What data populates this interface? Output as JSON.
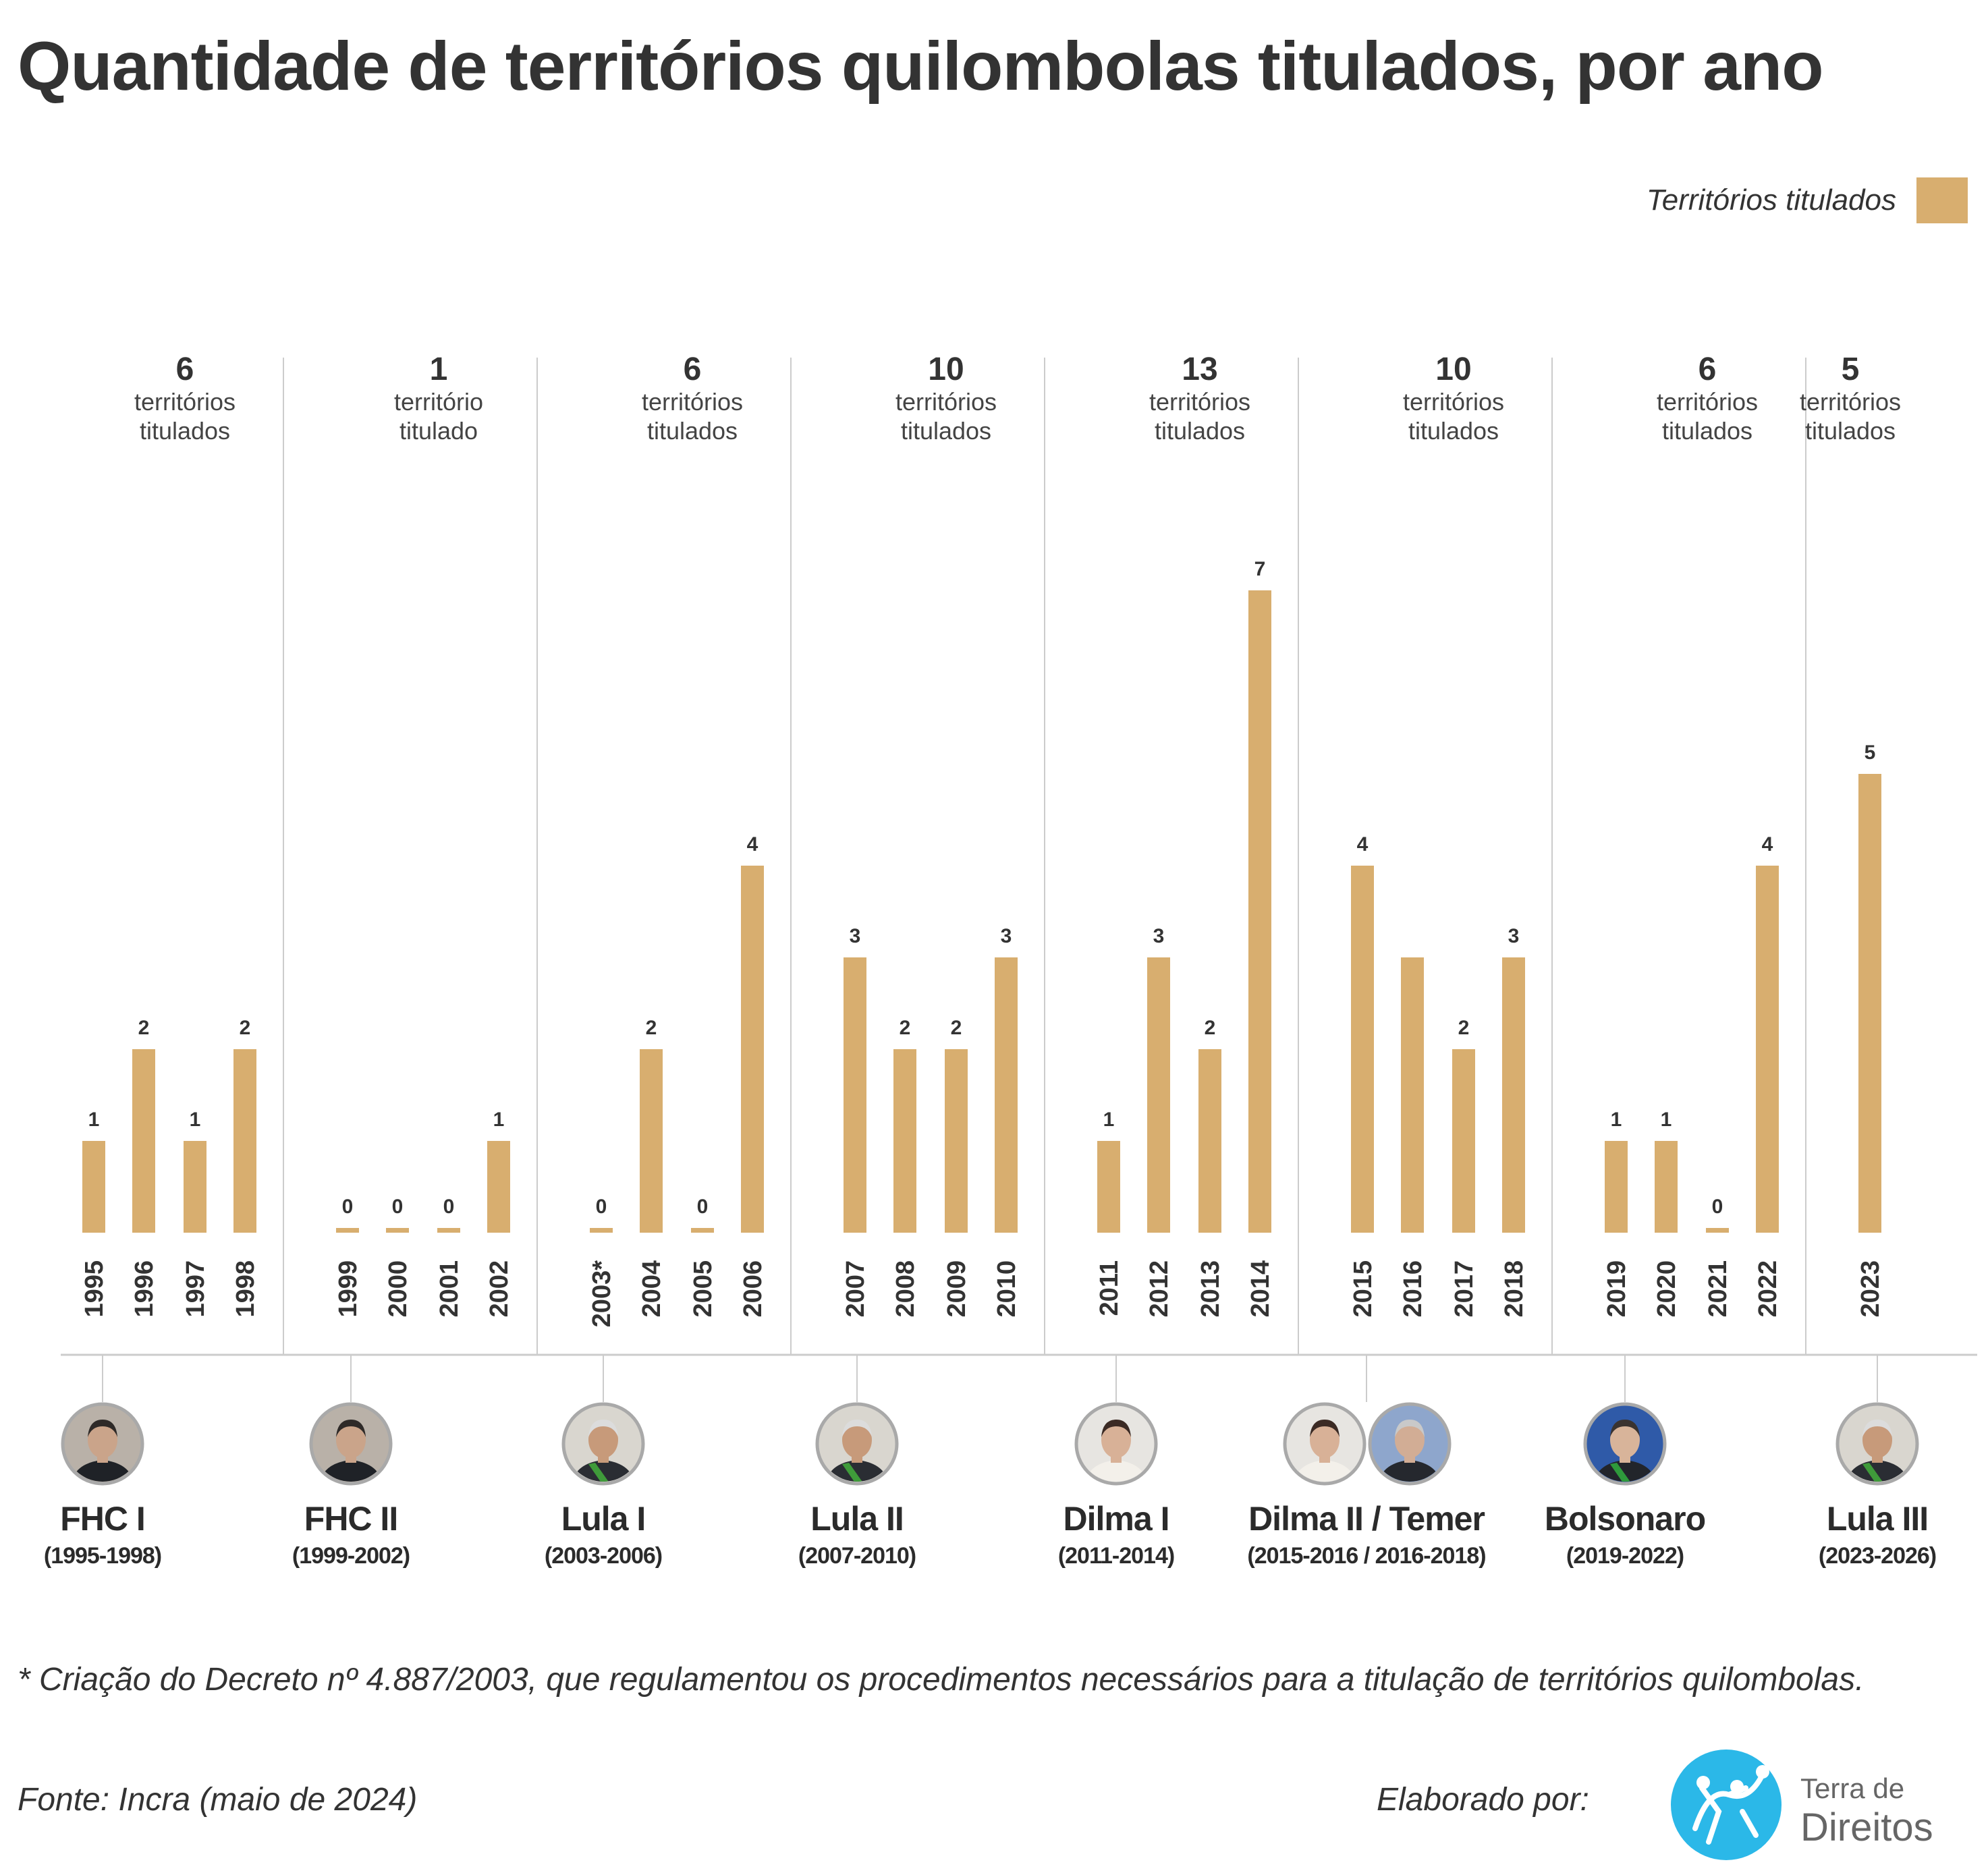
{
  "title": "Quantidade de territórios quilombolas titulados, por ano",
  "legend": {
    "label": "Territórios titulados",
    "color": "#d8ae6f"
  },
  "chart_data": {
    "type": "bar",
    "title": "Quantidade de territórios quilombolas titulados, por ano",
    "series": [
      {
        "name": "Territórios titulados",
        "color": "#d8ae6f"
      }
    ],
    "categories": [
      "1995",
      "1996",
      "1997",
      "1998",
      "1999",
      "2000",
      "2001",
      "2002",
      "2003*",
      "2004",
      "2005",
      "2006",
      "2007",
      "2008",
      "2009",
      "2010",
      "2011",
      "2012",
      "2013",
      "2014",
      "2015",
      "2016",
      "2017",
      "2018",
      "2019",
      "2020",
      "2021",
      "2022",
      "2023"
    ],
    "values": [
      1,
      2,
      1,
      2,
      0,
      0,
      0,
      1,
      0,
      2,
      0,
      4,
      3,
      2,
      2,
      3,
      1,
      3,
      2,
      7,
      4,
      3,
      2,
      3,
      1,
      1,
      0,
      4,
      5
    ],
    "value_labels": [
      "1",
      "2",
      "1",
      "2",
      "0",
      "0",
      "0",
      "1",
      "0",
      "2",
      "0",
      "4",
      "3",
      "2",
      "2",
      "3",
      "1",
      "3",
      "2",
      "7",
      "4",
      "",
      "2",
      "3",
      "1",
      "1",
      "0",
      "4",
      "5"
    ],
    "grid": false,
    "legend_position": "top-right",
    "groups": [
      {
        "total": "6",
        "total_label": [
          "territórios",
          "titulados"
        ],
        "years": [
          "1995",
          "1996",
          "1997",
          "1998"
        ]
      },
      {
        "total": "1",
        "total_label": [
          "território",
          "titulado"
        ],
        "years": [
          "1999",
          "2000",
          "2001",
          "2002"
        ]
      },
      {
        "total": "6",
        "total_label": [
          "territórios",
          "titulados"
        ],
        "years": [
          "2003*",
          "2004",
          "2005",
          "2006"
        ]
      },
      {
        "total": "10",
        "total_label": [
          "territórios",
          "titulados"
        ],
        "years": [
          "2007",
          "2008",
          "2009",
          "2010"
        ]
      },
      {
        "total": "13",
        "total_label": [
          "territórios",
          "titulados"
        ],
        "years": [
          "2011",
          "2012",
          "2013",
          "2014"
        ]
      },
      {
        "total": "10",
        "total_label": [
          "territórios",
          "titulados"
        ],
        "years": [
          "2015",
          "2016",
          "2017",
          "2018"
        ]
      },
      {
        "total": "6",
        "total_label": [
          "territórios",
          "titulados"
        ],
        "years": [
          "2019",
          "2020",
          "2021",
          "2022"
        ]
      },
      {
        "total": "5",
        "total_label": [
          "territórios",
          "titulados"
        ],
        "years": [
          "2023"
        ]
      }
    ]
  },
  "administrations": [
    {
      "name": "FHC I",
      "years": "(1995-1998)",
      "portraits": [
        "fhc-portrait"
      ]
    },
    {
      "name": "FHC II",
      "years": "(1999-2002)",
      "portraits": [
        "fhc-portrait"
      ]
    },
    {
      "name": "Lula I",
      "years": "(2003-2006)",
      "portraits": [
        "lula-portrait"
      ]
    },
    {
      "name": "Lula II",
      "years": "(2007-2010)",
      "portraits": [
        "lula-portrait"
      ]
    },
    {
      "name": "Dilma I",
      "years": "(2011-2014)",
      "portraits": [
        "dilma-portrait"
      ]
    },
    {
      "name": "Dilma II / Temer",
      "years": "(2015-2016 / 2016-2018)",
      "portraits": [
        "dilma-portrait",
        "temer-portrait"
      ]
    },
    {
      "name": "Bolsonaro",
      "years": "(2019-2022)",
      "portraits": [
        "bolsonaro-portrait"
      ]
    },
    {
      "name": "Lula III",
      "years": "(2023-2026)",
      "portraits": [
        "lula-portrait"
      ]
    }
  ],
  "footnote": "* Criação do Decreto nº 4.887/2003, que regulamentou os procedimentos necessários para a titulação de territórios quilombolas.",
  "source": "Fonte: Incra (maio de 2024)",
  "credit": "Elaborado por:",
  "logo": {
    "line1": "Terra de",
    "line2": "Direitos",
    "color": "#2bb8e8"
  },
  "colors": {
    "bar": "#d8ae6f",
    "divider": "#cccccc",
    "text": "#333333"
  }
}
